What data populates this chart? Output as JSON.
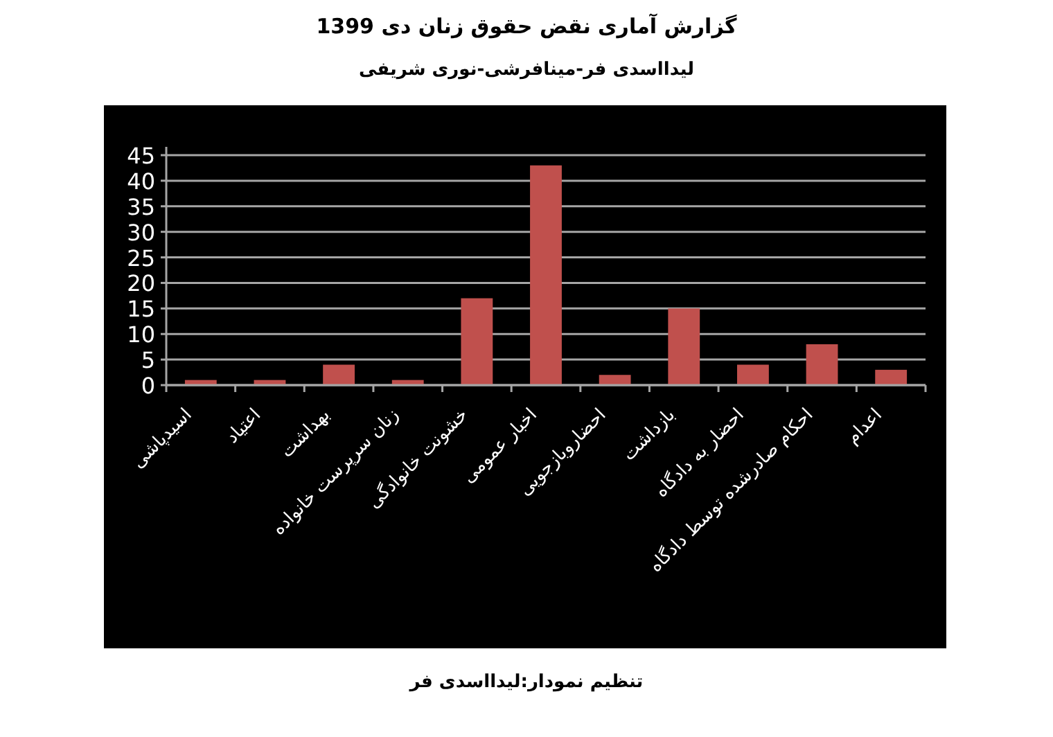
{
  "chart_data": {
    "type": "bar",
    "title": "گزارش آماری نقض حقوق زنان دی 1399",
    "subtitle": "لیدااسدی فر-مینافرشی-نوری شریفی",
    "categories": [
      "اسیدپاشی",
      "اعتیاد",
      "بهداشت",
      "زنان سرپرست خانواده",
      "خشونت خانوادگی",
      "اخبار عمومی",
      "احضاروبازجویی",
      "بازداشت",
      "احضار به دادگاه",
      "احکام صادرشده توسط دادگاه",
      "اعدام"
    ],
    "values": [
      1,
      1,
      4,
      1,
      17,
      43,
      2,
      15,
      4,
      8,
      3
    ],
    "color": "#c0504d",
    "ylim": [
      0,
      45
    ],
    "yticks": [
      0,
      5,
      10,
      15,
      20,
      25,
      30,
      35,
      40,
      45
    ],
    "grid": "y",
    "annotations": [
      "تنظیم نمودار:لیدااسدی فر"
    ]
  }
}
